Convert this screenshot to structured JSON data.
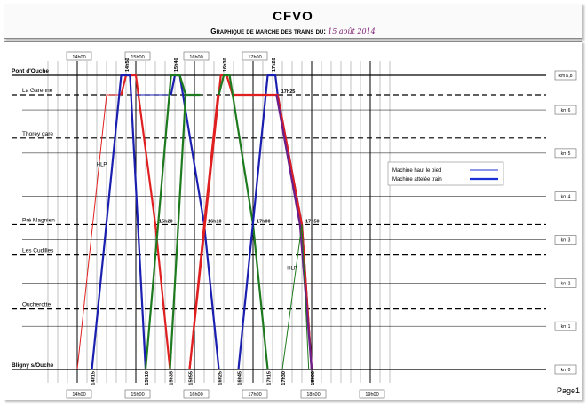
{
  "header": {
    "title": "CFVO",
    "subtitle": "Graphique de marche des trains du:",
    "date": "15 août 2014"
  },
  "page_label": "Page1",
  "hour_labels": [
    "14h00",
    "15h00",
    "16h00",
    "17h00",
    "14h00",
    "15h00",
    "16h00",
    "17h00",
    "18h00",
    "19h00"
  ],
  "stations": [
    {
      "name": "Pont d'Ouche",
      "km": 6.8,
      "bold": true
    },
    {
      "name": "La Garenne",
      "km": 6.35,
      "bold": false
    },
    {
      "name": "Thorey gare",
      "km": 5.35,
      "bold": false
    },
    {
      "name": "Pré Magnien",
      "km": 3.35,
      "bold": false
    },
    {
      "name": "Les Cudilles",
      "km": 2.65,
      "bold": false
    },
    {
      "name": "Oucherotte",
      "km": 1.4,
      "bold": false
    },
    {
      "name": "Bligny s/Ouche",
      "km": 0,
      "bold": true
    }
  ],
  "km_labels": [
    {
      "label": "km 6,8",
      "km": 6.8
    },
    {
      "label": "km 6",
      "km": 6.0
    },
    {
      "label": "km 5",
      "km": 5.0
    },
    {
      "label": "km 4",
      "km": 4.0
    },
    {
      "label": "km 3",
      "km": 3.0
    },
    {
      "label": "km 2",
      "km": 2.0
    },
    {
      "label": "km 1",
      "km": 1.0
    },
    {
      "label": "km 0",
      "km": 0
    }
  ],
  "time_annotations": [
    {
      "label": "14h50",
      "t": 14.833,
      "km": 6.8,
      "rot": true
    },
    {
      "label": "15h40",
      "t": 15.667,
      "km": 6.8,
      "rot": true
    },
    {
      "label": "16h30",
      "t": 16.5,
      "km": 6.8,
      "rot": true
    },
    {
      "label": "17h20",
      "t": 17.333,
      "km": 6.8,
      "rot": true
    },
    {
      "label": "17h25",
      "t": 17.42,
      "km": 6.35,
      "rot": false
    },
    {
      "label": "15h20",
      "t": 15.333,
      "km": 3.35,
      "rot": false
    },
    {
      "label": "16h10",
      "t": 16.167,
      "km": 3.35,
      "rot": false
    },
    {
      "label": "17h00",
      "t": 17.0,
      "km": 3.35,
      "rot": false
    },
    {
      "label": "17h50",
      "t": 17.833,
      "km": 3.35,
      "rot": false
    },
    {
      "label": "14h15",
      "t": 14.25,
      "km": 0,
      "rot": true
    },
    {
      "label": "15h10",
      "t": 15.167,
      "km": 0,
      "rot": true
    },
    {
      "label": "15h35",
      "t": 15.583,
      "km": 0,
      "rot": true
    },
    {
      "label": "15h55",
      "t": 15.917,
      "km": 0,
      "rot": true
    },
    {
      "label": "16h25",
      "t": 16.417,
      "km": 0,
      "rot": true
    },
    {
      "label": "16h45",
      "t": 16.75,
      "km": 0,
      "rot": true
    },
    {
      "label": "17h15",
      "t": 17.25,
      "km": 0,
      "rot": true
    },
    {
      "label": "17h30",
      "t": 17.5,
      "km": 0,
      "rot": true
    },
    {
      "label": "18h00",
      "t": 18.0,
      "km": 0,
      "rot": true
    }
  ],
  "hlp_labels": [
    {
      "label": "HLP",
      "t": 14.33,
      "km": 4.7
    },
    {
      "label": "HLP",
      "t": 17.58,
      "km": 2.3
    }
  ],
  "legend": {
    "items": [
      {
        "label": "Machine haut le pied",
        "color": "#1a2fd6",
        "weight": "thin"
      },
      {
        "label": "Machine attelée train",
        "color": "#1a2fd6",
        "weight": "thick"
      }
    ]
  },
  "colors": {
    "red": "#e02020",
    "blue": "#1a1fb0",
    "green": "#1e7a1e",
    "purple": "#6a1f8a"
  },
  "runs": [
    {
      "color": "red",
      "thick": false,
      "points": [
        [
          14.0,
          0
        ],
        [
          14.5,
          6.35
        ],
        [
          14.75,
          6.35
        ]
      ]
    },
    {
      "color": "red",
      "thick": true,
      "points": [
        [
          14.75,
          6.35
        ],
        [
          14.833,
          6.8
        ],
        [
          15.0,
          6.8
        ],
        [
          15.333,
          3.35
        ],
        [
          15.583,
          0
        ]
      ]
    },
    {
      "color": "blue",
      "thick": true,
      "points": [
        [
          14.25,
          0
        ],
        [
          14.75,
          6.8
        ],
        [
          14.9,
          6.8
        ],
        [
          15.167,
          0
        ]
      ]
    },
    {
      "color": "blue",
      "thick": false,
      "points": [
        [
          15.0,
          6.35
        ],
        [
          15.6,
          6.35
        ]
      ]
    },
    {
      "color": "blue",
      "thick": true,
      "points": [
        [
          15.6,
          6.35
        ],
        [
          15.667,
          6.8
        ],
        [
          15.75,
          6.8
        ],
        [
          16.167,
          3.35
        ],
        [
          16.417,
          0
        ]
      ]
    },
    {
      "color": "green",
      "thick": true,
      "points": [
        [
          15.167,
          0
        ],
        [
          15.6,
          6.8
        ],
        [
          15.75,
          6.8
        ],
        [
          15.85,
          6.35
        ],
        [
          16.1,
          6.35
        ]
      ]
    },
    {
      "color": "green",
      "thick": true,
      "points": [
        [
          15.85,
          6.35
        ],
        [
          15.583,
          0
        ]
      ]
    },
    {
      "color": "red",
      "thick": true,
      "points": [
        [
          15.917,
          0
        ],
        [
          16.45,
          6.8
        ],
        [
          16.55,
          6.8
        ],
        [
          16.65,
          6.35
        ],
        [
          16.9,
          6.35
        ]
      ]
    },
    {
      "color": "red",
      "thick": true,
      "points": [
        [
          16.4,
          6.35
        ],
        [
          16.167,
          3.35
        ],
        [
          15.917,
          0
        ]
      ]
    },
    {
      "color": "green",
      "thick": true,
      "points": [
        [
          16.417,
          6.35
        ],
        [
          16.5,
          6.8
        ],
        [
          16.6,
          6.8
        ],
        [
          17.0,
          3.35
        ],
        [
          17.25,
          0
        ]
      ]
    },
    {
      "color": "blue",
      "thick": true,
      "points": [
        [
          16.75,
          0
        ],
        [
          17.25,
          6.8
        ],
        [
          17.38,
          6.8
        ],
        [
          17.42,
          6.35
        ],
        [
          17.833,
          3.35
        ],
        [
          18.0,
          0
        ]
      ]
    },
    {
      "color": "red",
      "thick": true,
      "points": [
        [
          16.9,
          6.35
        ],
        [
          17.42,
          6.35
        ],
        [
          17.833,
          3.35
        ],
        [
          18.0,
          0
        ]
      ]
    },
    {
      "color": "purple",
      "thick": true,
      "points": [
        [
          17.4,
          6.35
        ],
        [
          17.8,
          3.35
        ],
        [
          18.0,
          0
        ]
      ]
    },
    {
      "color": "green",
      "thick": false,
      "points": [
        [
          17.5,
          0
        ],
        [
          17.833,
          3.35
        ],
        [
          17.95,
          0
        ]
      ]
    }
  ]
}
